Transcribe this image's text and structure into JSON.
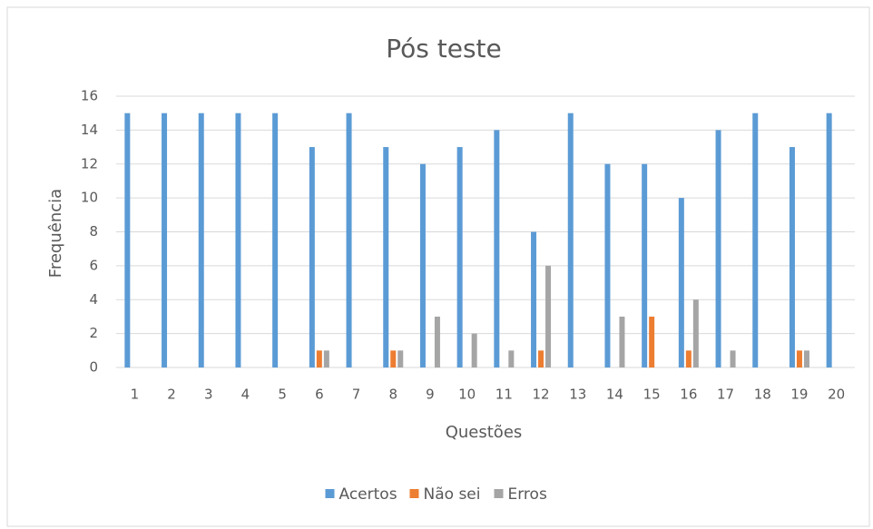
{
  "chart_data": {
    "type": "bar",
    "title": "Pós teste",
    "x_label": "Questões",
    "y_label": "Frequência",
    "categories": [
      "1",
      "2",
      "3",
      "4",
      "5",
      "6",
      "7",
      "8",
      "9",
      "10",
      "11",
      "12",
      "13",
      "14",
      "15",
      "16",
      "17",
      "18",
      "19",
      "20"
    ],
    "series": [
      {
        "name": "Acertos",
        "color": "#5b9bd5",
        "values": [
          15,
          15,
          15,
          15,
          15,
          13,
          15,
          13,
          12,
          13,
          14,
          8,
          15,
          12,
          12,
          10,
          14,
          15,
          13,
          15
        ]
      },
      {
        "name": "Não sei",
        "color": "#ed7d31",
        "values": [
          0,
          0,
          0,
          0,
          0,
          1,
          0,
          1,
          0,
          0,
          0,
          1,
          0,
          0,
          3,
          1,
          0,
          0,
          1,
          0
        ]
      },
      {
        "name": "Erros",
        "color": "#a5a5a5",
        "values": [
          0,
          0,
          0,
          0,
          0,
          1,
          0,
          1,
          3,
          2,
          1,
          6,
          0,
          3,
          0,
          4,
          1,
          0,
          1,
          0
        ]
      }
    ],
    "ylim": [
      0,
      16
    ],
    "yticks": [
      0,
      2,
      4,
      6,
      8,
      10,
      12,
      14,
      16
    ],
    "grid": true,
    "legend": "bottom"
  }
}
